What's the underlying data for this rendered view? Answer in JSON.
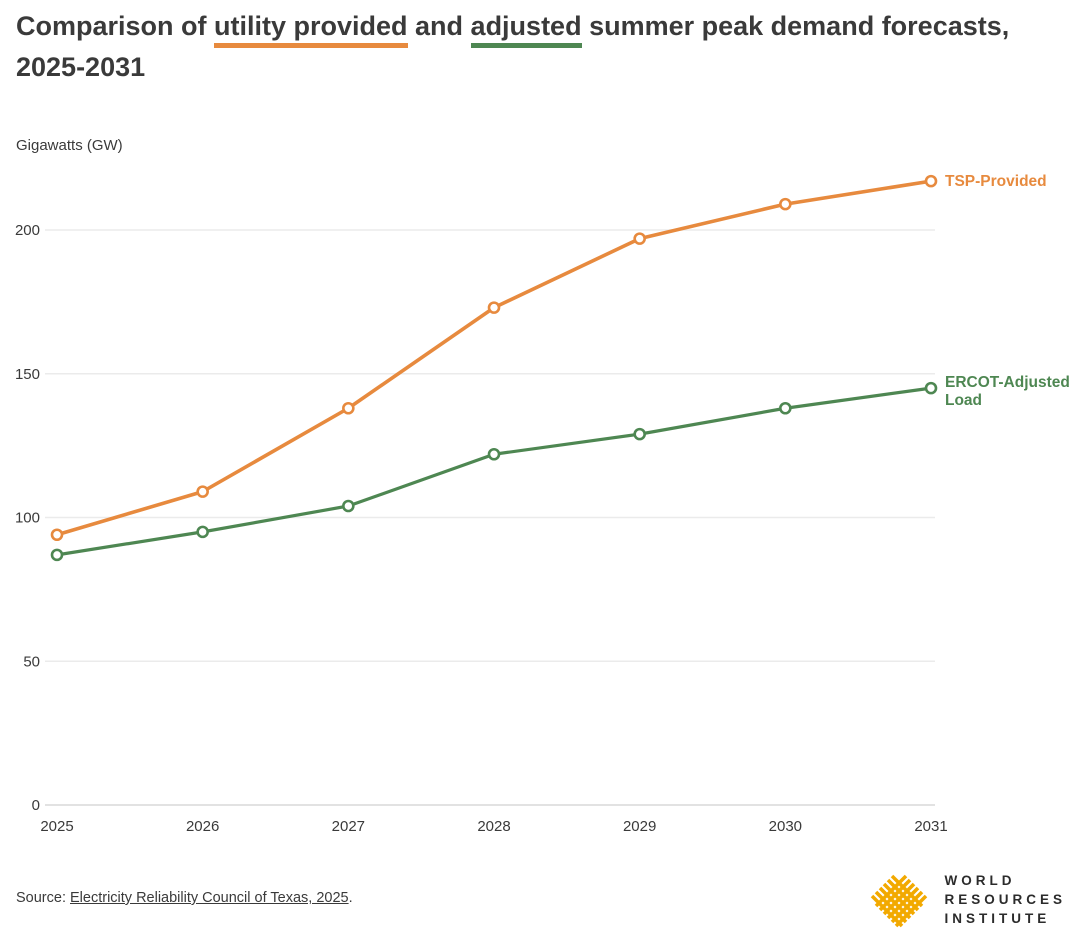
{
  "title": {
    "prefix": "Comparison of ",
    "highlight1": "utility provided",
    "middle": " and ",
    "highlight2": "adjusted",
    "suffix": " summer peak demand forecasts, 2025-2031"
  },
  "colors": {
    "orange": "#E78A3E",
    "green": "#4E8752",
    "grid": "#ebebeb",
    "baseline": "#d9d9d9",
    "text": "#3a3a3a",
    "gold": "#F2A900"
  },
  "chart_data": {
    "type": "line",
    "title": "Comparison of utility provided and adjusted summer peak demand forecasts, 2025-2031",
    "ylabel": "Gigawatts (GW)",
    "xlabel": "",
    "categories": [
      "2025",
      "2026",
      "2027",
      "2028",
      "2029",
      "2030",
      "2031"
    ],
    "yticks": [
      0,
      50,
      100,
      150,
      200
    ],
    "ylim": [
      0,
      230
    ],
    "grid": true,
    "legend_position": "right-end-labels",
    "series": [
      {
        "name": "TSP-Provided",
        "label_lines": [
          "TSP-Provided"
        ],
        "color": "#E78A3E",
        "values": [
          94,
          109,
          138,
          173,
          197,
          209,
          217
        ]
      },
      {
        "name": "ERCOT-Adjusted Load",
        "label_lines": [
          "ERCOT-Adjusted",
          "Load"
        ],
        "color": "#4E8752",
        "values": [
          87,
          95,
          104,
          122,
          129,
          138,
          145
        ]
      }
    ]
  },
  "source": {
    "prefix": "Source: ",
    "link": "Electricity Reliability Council of Texas, 2025",
    "suffix": "."
  },
  "logo": {
    "lines": [
      "WORLD",
      "RESOURCES",
      "INSTITUTE"
    ]
  }
}
